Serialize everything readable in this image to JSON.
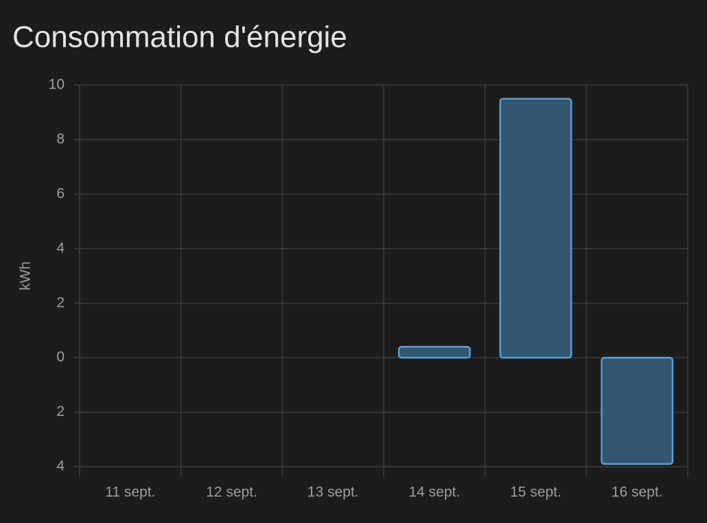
{
  "chart_data": {
    "type": "bar",
    "title": "Consommation d'énergie",
    "y_label": "kWh",
    "categories": [
      "11 sept.",
      "12 sept.",
      "13 sept.",
      "14 sept.",
      "15 sept.",
      "16 sept."
    ],
    "values": [
      0,
      0,
      0,
      0.4,
      9.5,
      -3.9
    ],
    "color": "#335671",
    "border_color": "#5b9fd6",
    "ylim": [
      -4,
      10
    ],
    "yticks": [
      {
        "value": -4,
        "label": "4"
      },
      {
        "value": -2,
        "label": "2"
      },
      0,
      2,
      4,
      6,
      8,
      10
    ],
    "grid": true
  }
}
